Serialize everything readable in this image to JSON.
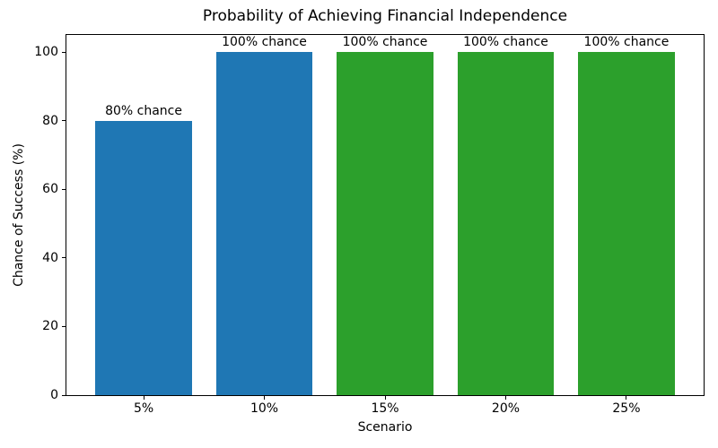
{
  "chart_data": {
    "type": "bar",
    "title": "Probability of Achieving Financial Independence",
    "xlabel": "Scenario",
    "ylabel": "Chance of Success (%)",
    "categories": [
      "5%",
      "10%",
      "15%",
      "20%",
      "25%"
    ],
    "values": [
      80,
      100,
      100,
      100,
      100
    ],
    "bar_labels": [
      "80% chance",
      "100% chance",
      "100% chance",
      "100% chance",
      "100% chance"
    ],
    "bar_colors": [
      "#1f77b4",
      "#1f77b4",
      "#2ca02c",
      "#2ca02c",
      "#2ca02c"
    ],
    "yticks": [
      0,
      20,
      40,
      60,
      80,
      100
    ],
    "ylim": [
      0,
      105
    ],
    "xlim": [
      -0.64,
      4.64
    ],
    "bar_width": 0.8,
    "grid": false,
    "legend": null,
    "background_color": "#ffffff",
    "spine_color": "#000000",
    "text_color": "#000000"
  }
}
